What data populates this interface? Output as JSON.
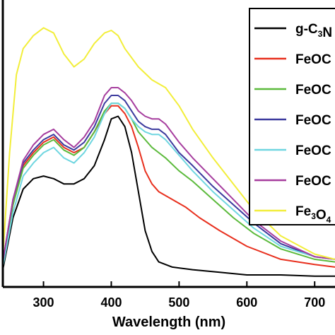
{
  "chart_data": {
    "type": "line",
    "title": "",
    "xlabel": "Wavelength (nm)",
    "ylabel": "",
    "xlim": [
      240,
      730
    ],
    "ylim": [
      0,
      1
    ],
    "x_ticks": [
      300,
      400,
      500,
      600,
      700
    ],
    "grid": false,
    "legend_position": "top-right (cropped at right edge)",
    "series": [
      {
        "name": "g-C3N",
        "label_main": "g-C",
        "label_sub": "3",
        "label_tail": "N",
        "color": "#000000",
        "points": [
          [
            240,
            0.05
          ],
          [
            255,
            0.25
          ],
          [
            270,
            0.36
          ],
          [
            285,
            0.4
          ],
          [
            300,
            0.41
          ],
          [
            315,
            0.4
          ],
          [
            330,
            0.38
          ],
          [
            345,
            0.38
          ],
          [
            360,
            0.4
          ],
          [
            375,
            0.45
          ],
          [
            390,
            0.55
          ],
          [
            400,
            0.63
          ],
          [
            410,
            0.64
          ],
          [
            420,
            0.6
          ],
          [
            430,
            0.5
          ],
          [
            440,
            0.35
          ],
          [
            450,
            0.2
          ],
          [
            460,
            0.12
          ],
          [
            470,
            0.08
          ],
          [
            490,
            0.06
          ],
          [
            520,
            0.05
          ],
          [
            560,
            0.04
          ],
          [
            600,
            0.03
          ],
          [
            650,
            0.03
          ],
          [
            700,
            0.025
          ],
          [
            730,
            0.025
          ]
        ]
      },
      {
        "name": "FeOC",
        "label_main": "FeOC",
        "label_sub": "",
        "label_tail": "",
        "color": "#e8301e",
        "points": [
          [
            240,
            0.07
          ],
          [
            255,
            0.3
          ],
          [
            270,
            0.45
          ],
          [
            285,
            0.5
          ],
          [
            300,
            0.54
          ],
          [
            315,
            0.56
          ],
          [
            330,
            0.52
          ],
          [
            345,
            0.5
          ],
          [
            360,
            0.52
          ],
          [
            375,
            0.58
          ],
          [
            390,
            0.65
          ],
          [
            400,
            0.68
          ],
          [
            410,
            0.68
          ],
          [
            420,
            0.65
          ],
          [
            430,
            0.6
          ],
          [
            440,
            0.52
          ],
          [
            450,
            0.43
          ],
          [
            460,
            0.38
          ],
          [
            470,
            0.35
          ],
          [
            490,
            0.32
          ],
          [
            510,
            0.29
          ],
          [
            530,
            0.25
          ],
          [
            560,
            0.2
          ],
          [
            600,
            0.14
          ],
          [
            650,
            0.09
          ],
          [
            700,
            0.07
          ],
          [
            730,
            0.06
          ]
        ]
      },
      {
        "name": "FeOC",
        "label_main": "FeOC",
        "label_sub": "",
        "label_tail": "",
        "color": "#5cba3c",
        "points": [
          [
            240,
            0.07
          ],
          [
            255,
            0.3
          ],
          [
            270,
            0.44
          ],
          [
            285,
            0.49
          ],
          [
            300,
            0.53
          ],
          [
            315,
            0.55
          ],
          [
            330,
            0.51
          ],
          [
            345,
            0.49
          ],
          [
            360,
            0.52
          ],
          [
            375,
            0.58
          ],
          [
            390,
            0.66
          ],
          [
            400,
            0.69
          ],
          [
            410,
            0.69
          ],
          [
            420,
            0.67
          ],
          [
            430,
            0.63
          ],
          [
            440,
            0.58
          ],
          [
            450,
            0.55
          ],
          [
            460,
            0.52
          ],
          [
            470,
            0.5
          ],
          [
            480,
            0.48
          ],
          [
            500,
            0.43
          ],
          [
            520,
            0.39
          ],
          [
            550,
            0.32
          ],
          [
            580,
            0.25
          ],
          [
            610,
            0.19
          ],
          [
            650,
            0.13
          ],
          [
            700,
            0.09
          ],
          [
            730,
            0.08
          ]
        ]
      },
      {
        "name": "FeOC",
        "label_main": "FeOC",
        "label_sub": "",
        "label_tail": "",
        "color": "#3c3a9e",
        "points": [
          [
            240,
            0.08
          ],
          [
            255,
            0.32
          ],
          [
            270,
            0.46
          ],
          [
            285,
            0.51
          ],
          [
            300,
            0.55
          ],
          [
            315,
            0.57
          ],
          [
            330,
            0.53
          ],
          [
            345,
            0.51
          ],
          [
            360,
            0.54
          ],
          [
            375,
            0.6
          ],
          [
            390,
            0.69
          ],
          [
            400,
            0.72
          ],
          [
            410,
            0.72
          ],
          [
            420,
            0.7
          ],
          [
            430,
            0.66
          ],
          [
            440,
            0.62
          ],
          [
            450,
            0.6
          ],
          [
            460,
            0.59
          ],
          [
            470,
            0.59
          ],
          [
            480,
            0.57
          ],
          [
            500,
            0.5
          ],
          [
            520,
            0.45
          ],
          [
            550,
            0.37
          ],
          [
            580,
            0.3
          ],
          [
            610,
            0.23
          ],
          [
            650,
            0.15
          ],
          [
            700,
            0.1
          ],
          [
            730,
            0.09
          ]
        ]
      },
      {
        "name": "FeOC",
        "label_main": "FeOC",
        "label_sub": "",
        "label_tail": "",
        "color": "#6fd6e0",
        "points": [
          [
            240,
            0.06
          ],
          [
            255,
            0.27
          ],
          [
            270,
            0.41
          ],
          [
            285,
            0.46
          ],
          [
            300,
            0.5
          ],
          [
            315,
            0.52
          ],
          [
            330,
            0.48
          ],
          [
            345,
            0.46
          ],
          [
            360,
            0.5
          ],
          [
            375,
            0.56
          ],
          [
            390,
            0.65
          ],
          [
            400,
            0.69
          ],
          [
            410,
            0.69
          ],
          [
            420,
            0.67
          ],
          [
            430,
            0.63
          ],
          [
            440,
            0.6
          ],
          [
            450,
            0.58
          ],
          [
            460,
            0.57
          ],
          [
            470,
            0.57
          ],
          [
            480,
            0.55
          ],
          [
            500,
            0.49
          ],
          [
            520,
            0.43
          ],
          [
            550,
            0.35
          ],
          [
            580,
            0.28
          ],
          [
            610,
            0.21
          ],
          [
            650,
            0.14
          ],
          [
            700,
            0.1
          ],
          [
            730,
            0.09
          ]
        ]
      },
      {
        "name": "FeOC",
        "label_main": "FeOC",
        "label_sub": "",
        "label_tail": "",
        "color": "#a63d9e",
        "points": [
          [
            240,
            0.08
          ],
          [
            255,
            0.32
          ],
          [
            270,
            0.47
          ],
          [
            285,
            0.53
          ],
          [
            300,
            0.57
          ],
          [
            315,
            0.59
          ],
          [
            330,
            0.55
          ],
          [
            345,
            0.52
          ],
          [
            360,
            0.56
          ],
          [
            375,
            0.62
          ],
          [
            390,
            0.72
          ],
          [
            400,
            0.75
          ],
          [
            410,
            0.75
          ],
          [
            420,
            0.73
          ],
          [
            430,
            0.7
          ],
          [
            440,
            0.66
          ],
          [
            450,
            0.64
          ],
          [
            460,
            0.63
          ],
          [
            470,
            0.63
          ],
          [
            480,
            0.61
          ],
          [
            500,
            0.54
          ],
          [
            520,
            0.48
          ],
          [
            550,
            0.4
          ],
          [
            580,
            0.32
          ],
          [
            610,
            0.24
          ],
          [
            650,
            0.16
          ],
          [
            700,
            0.1
          ],
          [
            730,
            0.09
          ]
        ]
      },
      {
        "name": "Fe3O4",
        "label_main": "Fe",
        "label_sub": "3",
        "label_tail": "O",
        "label_sub2": "4",
        "color": "#f2ee3a",
        "points": [
          [
            240,
            0.1
          ],
          [
            250,
            0.5
          ],
          [
            260,
            0.8
          ],
          [
            270,
            0.9
          ],
          [
            285,
            0.95
          ],
          [
            300,
            0.98
          ],
          [
            315,
            0.96
          ],
          [
            330,
            0.88
          ],
          [
            345,
            0.83
          ],
          [
            360,
            0.86
          ],
          [
            375,
            0.92
          ],
          [
            390,
            0.96
          ],
          [
            400,
            0.97
          ],
          [
            410,
            0.95
          ],
          [
            420,
            0.9
          ],
          [
            440,
            0.83
          ],
          [
            460,
            0.78
          ],
          [
            480,
            0.75
          ],
          [
            500,
            0.68
          ],
          [
            520,
            0.59
          ],
          [
            550,
            0.48
          ],
          [
            580,
            0.38
          ],
          [
            610,
            0.28
          ],
          [
            650,
            0.18
          ],
          [
            700,
            0.11
          ],
          [
            730,
            0.09
          ]
        ]
      }
    ]
  }
}
